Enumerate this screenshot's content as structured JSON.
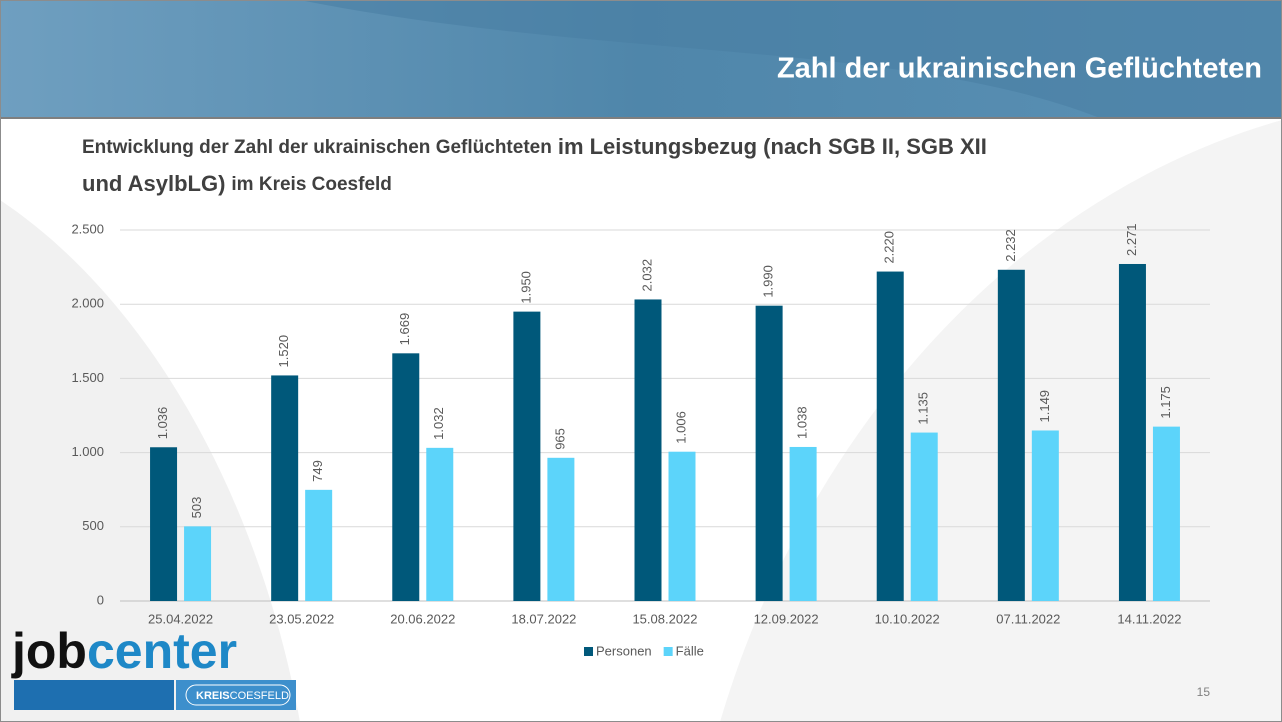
{
  "header": {
    "title": "Zahl der ukrainischen Geflüchteten"
  },
  "subtitle_parts": [
    "Entwicklung der Zahl der ukrainischen Geflüchteten",
    "im Leistungsbezug (nach SGB II, SGB XII",
    "und AsylbLG)",
    "im Kreis Coesfeld"
  ],
  "chart_data": {
    "type": "bar",
    "categories": [
      "25.04.2022",
      "23.05.2022",
      "20.06.2022",
      "18.07.2022",
      "15.08.2022",
      "12.09.2022",
      "10.10.2022",
      "07.11.2022",
      "14.11.2022"
    ],
    "series": [
      {
        "name": "Personen",
        "color": "#00587a",
        "values": [
          1036,
          1520,
          1669,
          1950,
          2032,
          1990,
          2220,
          2232,
          2271
        ],
        "value_labels": [
          "1.036",
          "1.520",
          "1.669",
          "1.950",
          "2.032",
          "1.990",
          "2.220",
          "2.232",
          "2.271"
        ]
      },
      {
        "name": "Fälle",
        "color": "#5cd4fa",
        "values": [
          503,
          749,
          1032,
          965,
          1006,
          1038,
          1135,
          1149,
          1175
        ],
        "value_labels": [
          "503",
          "749",
          "1.032",
          "965",
          "1.006",
          "1.038",
          "1.135",
          "1.149",
          "1.175"
        ]
      }
    ],
    "ylim": [
      0,
      2500
    ],
    "yticks": [
      0,
      500,
      {
        "value": 1000,
        "label": "1.000"
      },
      {
        "value": 1500,
        "label": "1.500"
      },
      {
        "value": 2000,
        "label": "2.000"
      },
      {
        "value": 2500,
        "label": "2.500"
      }
    ],
    "grid": true,
    "legend": "bottom"
  },
  "logo": {
    "part1": "job",
    "part2": "center",
    "kreis": "KREIS",
    "coesfeld": "COESFELD"
  },
  "page_number": "15"
}
